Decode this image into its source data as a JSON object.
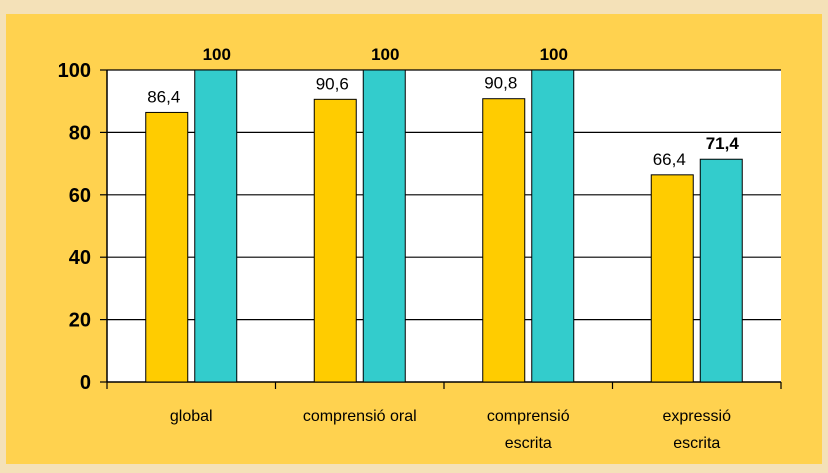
{
  "chart_data": {
    "type": "bar",
    "categories": [
      [
        "global"
      ],
      [
        "comprensió oral"
      ],
      [
        "comprensió",
        "escrita"
      ],
      [
        "expressió",
        "escrita"
      ]
    ],
    "series": [
      {
        "values": [
          86.4,
          90.6,
          90.8,
          66.4
        ],
        "labels": [
          "86,4",
          "90,6",
          "90,8",
          "66,4"
        ],
        "color": "#ffcc00",
        "label_bold": false
      },
      {
        "values": [
          100,
          100,
          100,
          71.4
        ],
        "labels": [
          "100",
          "100",
          "100",
          "71,4"
        ],
        "color": "#33cccc",
        "label_bold": true
      }
    ],
    "yticks": [
      "0",
      "20",
      "40",
      "60",
      "80",
      "100"
    ],
    "ylim": [
      0,
      100
    ],
    "grid": true,
    "title": "",
    "xlabel": "",
    "ylabel": "",
    "colors": {
      "frame": "#ffd24f",
      "page": "#f4e1b8",
      "plot": "#ffffff"
    }
  }
}
